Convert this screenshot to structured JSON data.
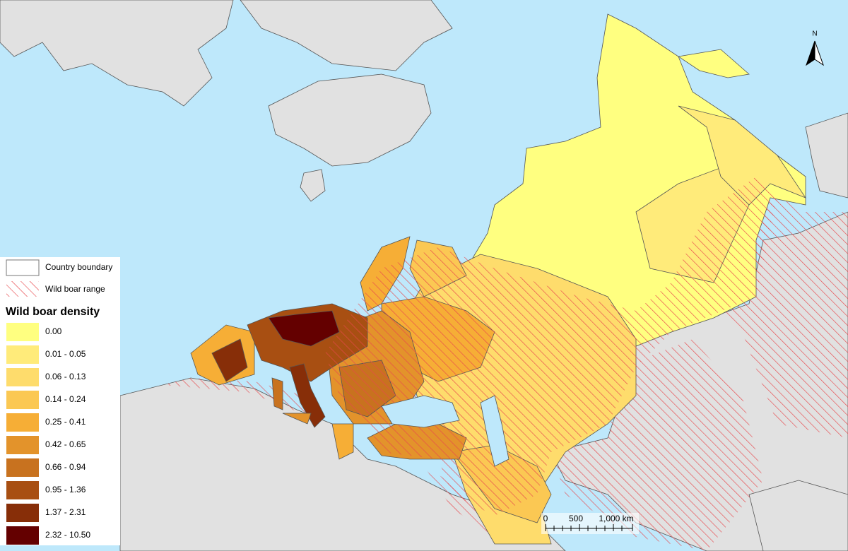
{
  "legend": {
    "boundary": "Country boundary",
    "range": "Wild boar range",
    "title": "Wild boar density",
    "classes": [
      {
        "label": "0.00",
        "color": "#ffff80"
      },
      {
        "label": "0.01 - 0.05",
        "color": "#ffeb7a"
      },
      {
        "label": "0.06 - 0.13",
        "color": "#fedc6c"
      },
      {
        "label": "0.14 - 0.24",
        "color": "#fbc853"
      },
      {
        "label": "0.25 - 0.41",
        "color": "#f6ae36"
      },
      {
        "label": "0.42 - 0.65",
        "color": "#e3932b"
      },
      {
        "label": "0.66 - 0.94",
        "color": "#c8721f"
      },
      {
        "label": "0.95 - 1.36",
        "color": "#a84f12"
      },
      {
        "label": "1.37 - 2.31",
        "color": "#872e08"
      },
      {
        "label": "2.32 - 10.50",
        "color": "#640000"
      }
    ]
  },
  "scale_bar": {
    "labels": [
      "0",
      "500",
      "1,000 km"
    ]
  },
  "north_arrow": "N"
}
